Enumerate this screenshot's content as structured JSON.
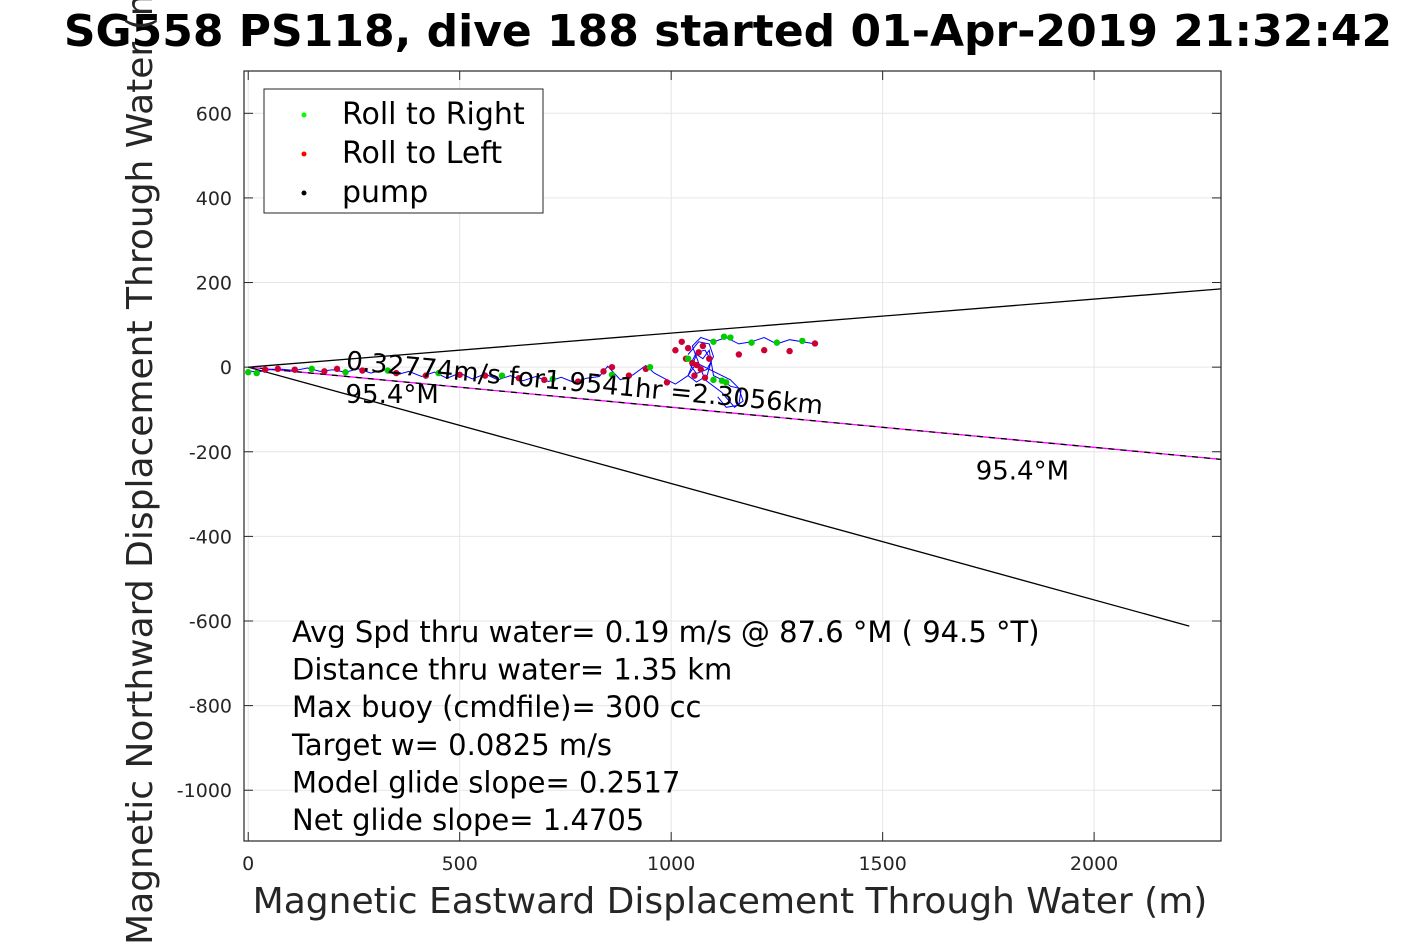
{
  "chart_data": {
    "type": "line",
    "title": "SG558 PS118, dive 188 started 01-Apr-2019 21:32:42",
    "xlabel": "Magnetic Eastward Displacement Through Water (m)",
    "ylabel": "Magnetic Northward Displacement Through Water (m)",
    "xlim": [
      -10,
      2300
    ],
    "ylim": [
      -1120,
      700
    ],
    "xticks": [
      0,
      500,
      1000,
      1500,
      2000
    ],
    "yticks": [
      600,
      400,
      200,
      0,
      -200,
      -400,
      -600,
      -800,
      -1000
    ],
    "grid": true,
    "legend": {
      "placement": "top-left",
      "entries": [
        {
          "label": "Roll to Right",
          "color": "#00ff00"
        },
        {
          "label": "Roll to Left",
          "color": "#ff0000"
        },
        {
          "label": "pump",
          "color": "#000000"
        }
      ]
    },
    "lines": [
      {
        "color": "#000000",
        "points": [
          [
            0,
            0
          ],
          [
            2300,
            185
          ]
        ]
      },
      {
        "color": "#000000",
        "points": [
          [
            0,
            0
          ],
          [
            2225,
            -612
          ]
        ]
      },
      {
        "color": "#ff00ff",
        "points": [
          [
            0,
            0
          ],
          [
            2300,
            -218
          ]
        ]
      },
      {
        "color": "#000000",
        "points": [
          [
            0,
            0
          ],
          [
            2300,
            -218
          ]
        ]
      }
    ],
    "track": [
      [
        0,
        -8
      ],
      [
        20,
        -12
      ],
      [
        50,
        -6
      ],
      [
        80,
        -5
      ],
      [
        110,
        -8
      ],
      [
        140,
        -2
      ],
      [
        170,
        -10
      ],
      [
        200,
        -6
      ],
      [
        230,
        -12
      ],
      [
        260,
        -4
      ],
      [
        290,
        -14
      ],
      [
        320,
        -6
      ],
      [
        350,
        -18
      ],
      [
        380,
        -10
      ],
      [
        410,
        -22
      ],
      [
        440,
        -12
      ],
      [
        470,
        -26
      ],
      [
        500,
        -14
      ],
      [
        530,
        -28
      ],
      [
        560,
        -16
      ],
      [
        590,
        -30
      ],
      [
        620,
        -20
      ],
      [
        650,
        -32
      ],
      [
        680,
        -22
      ],
      [
        710,
        -34
      ],
      [
        740,
        -24
      ],
      [
        770,
        -36
      ],
      [
        800,
        -26
      ],
      [
        830,
        -22
      ],
      [
        850,
        2
      ],
      [
        880,
        -30
      ],
      [
        910,
        -18
      ],
      [
        940,
        4
      ],
      [
        960,
        -14
      ],
      [
        990,
        -30
      ],
      [
        1010,
        -40
      ],
      [
        1040,
        -20
      ],
      [
        1060,
        30
      ],
      [
        1075,
        20
      ],
      [
        1090,
        40
      ],
      [
        1100,
        -20
      ],
      [
        1120,
        -30
      ],
      [
        1140,
        -45
      ],
      [
        1160,
        -50
      ],
      [
        1170,
        -80
      ],
      [
        1150,
        -95
      ],
      [
        1120,
        -60
      ],
      [
        1080,
        -30
      ],
      [
        1050,
        50
      ],
      [
        1070,
        70
      ],
      [
        1100,
        60
      ],
      [
        1130,
        70
      ],
      [
        1160,
        55
      ],
      [
        1190,
        60
      ],
      [
        1220,
        70
      ],
      [
        1250,
        55
      ],
      [
        1280,
        65
      ],
      [
        1310,
        60
      ],
      [
        1340,
        55
      ]
    ],
    "roll_right": [
      [
        0,
        -12
      ],
      [
        20,
        -14
      ],
      [
        150,
        -4
      ],
      [
        230,
        -12
      ],
      [
        330,
        -8
      ],
      [
        450,
        -14
      ],
      [
        600,
        -20
      ],
      [
        720,
        -28
      ],
      [
        860,
        -18
      ],
      [
        950,
        0
      ],
      [
        1040,
        20
      ],
      [
        1100,
        60
      ],
      [
        1125,
        72
      ],
      [
        1140,
        70
      ],
      [
        1190,
        58
      ],
      [
        1250,
        58
      ],
      [
        1310,
        62
      ],
      [
        1100,
        -30
      ],
      [
        1120,
        -32
      ],
      [
        1130,
        -36
      ]
    ],
    "roll_left": [
      [
        40,
        -6
      ],
      [
        70,
        -4
      ],
      [
        110,
        -6
      ],
      [
        180,
        -10
      ],
      [
        210,
        -4
      ],
      [
        270,
        -8
      ],
      [
        350,
        -14
      ],
      [
        420,
        -20
      ],
      [
        500,
        -18
      ],
      [
        560,
        -20
      ],
      [
        640,
        -26
      ],
      [
        700,
        -30
      ],
      [
        780,
        -34
      ],
      [
        840,
        -10
      ],
      [
        860,
        0
      ],
      [
        900,
        -20
      ],
      [
        940,
        -4
      ],
      [
        990,
        -36
      ],
      [
        1010,
        40
      ],
      [
        1025,
        60
      ],
      [
        1035,
        20
      ],
      [
        1040,
        45
      ],
      [
        1050,
        10
      ],
      [
        1055,
        -20
      ],
      [
        1060,
        5
      ],
      [
        1065,
        35
      ],
      [
        1070,
        -5
      ],
      [
        1075,
        50
      ],
      [
        1080,
        -25
      ],
      [
        1090,
        20
      ],
      [
        1160,
        30
      ],
      [
        1220,
        40
      ],
      [
        1280,
        38
      ],
      [
        1340,
        56
      ]
    ],
    "blue_loop": [
      [
        1040,
        30
      ],
      [
        1065,
        60
      ],
      [
        1090,
        55
      ],
      [
        1100,
        25
      ],
      [
        1085,
        -5
      ],
      [
        1060,
        -15
      ],
      [
        1045,
        5
      ],
      [
        1060,
        35
      ],
      [
        1080,
        40
      ],
      [
        1095,
        15
      ],
      [
        1085,
        -20
      ],
      [
        1060,
        -35
      ],
      [
        1040,
        -20
      ],
      [
        1060,
        10
      ],
      [
        1100,
        -10
      ],
      [
        1140,
        -30
      ],
      [
        1165,
        -55
      ],
      [
        1160,
        -90
      ],
      [
        1130,
        -95
      ],
      [
        1110,
        -70
      ]
    ],
    "text_annotations": [
      {
        "text": "0.32774m/s for1.9541hr =2.3056km",
        "at": [
          230,
          -5
        ],
        "rotation_deg": 5.4
      },
      {
        "text": "95.4°M",
        "at": [
          230,
          -85
        ],
        "rotation_deg": 0
      },
      {
        "text": "95.4°M",
        "at": [
          1720,
          -265
        ],
        "rotation_deg": 0
      }
    ],
    "stats": [
      "Avg Spd thru water=  0.19 m/s @  87.6 °M ( 94.5 °T)",
      "Distance thru water=  1.35 km",
      "Max buoy (cmdfile)= 300 cc",
      "Target w= 0.0825 m/s",
      "Model glide slope= 0.2517",
      "Net glide slope= 1.4705"
    ]
  }
}
